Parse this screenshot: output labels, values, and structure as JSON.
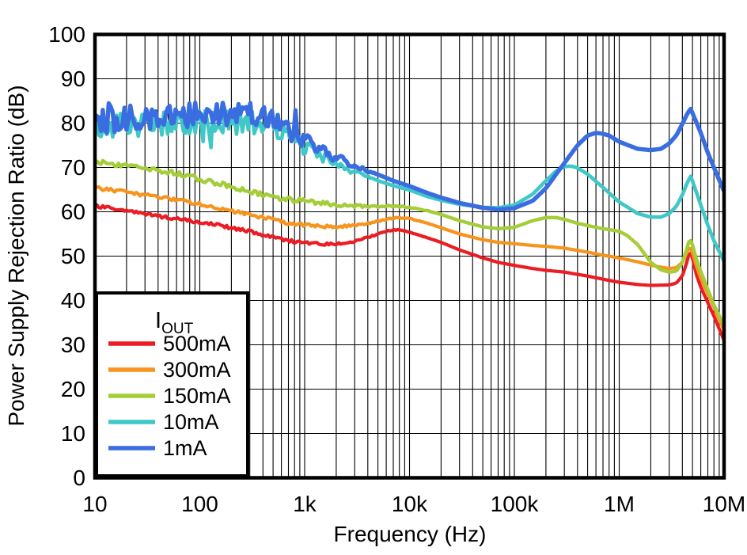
{
  "chart_data": {
    "type": "line",
    "title": "",
    "xlabel": "Frequency (Hz)",
    "ylabel": "Power Supply Rejection Ratio (dB)",
    "x_scale": "log",
    "xlim": [
      10,
      10000000
    ],
    "ylim": [
      0,
      100
    ],
    "grid": "log minor vertical grid + major horizontal grid, black on white",
    "x_ticks": [
      {
        "value": 10,
        "label": "10"
      },
      {
        "value": 100,
        "label": "100"
      },
      {
        "value": 1000,
        "label": "1k"
      },
      {
        "value": 10000,
        "label": "10k"
      },
      {
        "value": 100000,
        "label": "100k"
      },
      {
        "value": 1000000,
        "label": "1M"
      },
      {
        "value": 10000000,
        "label": "10M"
      }
    ],
    "y_ticks": [
      {
        "value": 0,
        "label": "0"
      },
      {
        "value": 10,
        "label": "10"
      },
      {
        "value": 20,
        "label": "20"
      },
      {
        "value": 30,
        "label": "30"
      },
      {
        "value": 40,
        "label": "40"
      },
      {
        "value": 50,
        "label": "50"
      },
      {
        "value": 60,
        "label": "60"
      },
      {
        "value": 70,
        "label": "70"
      },
      {
        "value": 80,
        "label": "80"
      },
      {
        "value": 90,
        "label": "90"
      },
      {
        "value": 100,
        "label": "100"
      }
    ],
    "legend": {
      "title_main": "I",
      "title_sub": "OUT",
      "position": "bottom-left"
    },
    "series": [
      {
        "name": "500mA",
        "color": "#ec1c24",
        "width": 4.2,
        "noise": {
          "amp": 0.35,
          "f0": 1000,
          "f1": 20000
        },
        "points": [
          [
            10,
            61.3
          ],
          [
            20,
            60.2
          ],
          [
            30,
            59.5
          ],
          [
            50,
            58.7
          ],
          [
            70,
            58.2
          ],
          [
            100,
            57.7
          ],
          [
            150,
            57.0
          ],
          [
            200,
            56.4
          ],
          [
            300,
            55.5
          ],
          [
            500,
            54.3
          ],
          [
            700,
            53.5
          ],
          [
            1000,
            53.0
          ],
          [
            1500,
            52.7
          ],
          [
            2000,
            52.7
          ],
          [
            3000,
            53.3
          ],
          [
            4000,
            54.2
          ],
          [
            5000,
            55.0
          ],
          [
            6000,
            55.6
          ],
          [
            7000,
            55.9
          ],
          [
            8000,
            55.9
          ],
          [
            10000,
            55.4
          ],
          [
            15000,
            54.1
          ],
          [
            20000,
            53.1
          ],
          [
            30000,
            51.4
          ],
          [
            50000,
            49.6
          ],
          [
            70000,
            48.6
          ],
          [
            100000,
            47.9
          ],
          [
            150000,
            47.2
          ],
          [
            200000,
            46.8
          ],
          [
            300000,
            46.4
          ],
          [
            500000,
            45.5
          ],
          [
            700000,
            44.8
          ],
          [
            1000000,
            44.1
          ],
          [
            1500000,
            43.6
          ],
          [
            2000000,
            43.4
          ],
          [
            3000000,
            43.5
          ],
          [
            3500000,
            43.9
          ],
          [
            4000000,
            45.5
          ],
          [
            4400000,
            48.5
          ],
          [
            4700000,
            51.2
          ],
          [
            5000000,
            49.5
          ],
          [
            5500000,
            45.5
          ],
          [
            6000000,
            43.0
          ],
          [
            7000000,
            39.5
          ],
          [
            8000000,
            36.5
          ],
          [
            10000000,
            31.0
          ]
        ]
      },
      {
        "name": "300mA",
        "color": "#f7941d",
        "width": 4.2,
        "noise": {
          "amp": 0.4,
          "f0": 1000,
          "f1": 20000
        },
        "points": [
          [
            10,
            65.4
          ],
          [
            20,
            64.4
          ],
          [
            30,
            63.8
          ],
          [
            50,
            63.0
          ],
          [
            70,
            62.4
          ],
          [
            100,
            61.7
          ],
          [
            150,
            60.9
          ],
          [
            200,
            60.2
          ],
          [
            300,
            59.3
          ],
          [
            500,
            58.2
          ],
          [
            700,
            57.5
          ],
          [
            1000,
            57.0
          ],
          [
            1500,
            56.7
          ],
          [
            2000,
            56.6
          ],
          [
            3000,
            56.9
          ],
          [
            4000,
            57.4
          ],
          [
            5000,
            57.9
          ],
          [
            7000,
            58.6
          ],
          [
            8000,
            58.7
          ],
          [
            10000,
            58.5
          ],
          [
            15000,
            57.4
          ],
          [
            20000,
            56.4
          ],
          [
            30000,
            55.0
          ],
          [
            50000,
            53.7
          ],
          [
            70000,
            53.1
          ],
          [
            100000,
            52.8
          ],
          [
            150000,
            52.4
          ],
          [
            200000,
            52.2
          ],
          [
            300000,
            51.8
          ],
          [
            500000,
            50.9
          ],
          [
            700000,
            50.2
          ],
          [
            1000000,
            49.6
          ],
          [
            1500000,
            48.7
          ],
          [
            2000000,
            48.0
          ],
          [
            2500000,
            47.5
          ],
          [
            3000000,
            47.2
          ],
          [
            3500000,
            47.4
          ],
          [
            4000000,
            48.6
          ],
          [
            4400000,
            50.7
          ],
          [
            4700000,
            52.2
          ],
          [
            5000000,
            50.8
          ],
          [
            5500000,
            47.5
          ],
          [
            6000000,
            45.0
          ],
          [
            7000000,
            41.5
          ],
          [
            8000000,
            38.5
          ],
          [
            10000000,
            33.2
          ]
        ]
      },
      {
        "name": "150mA",
        "color": "#a5cd39",
        "width": 4.4,
        "noise": {
          "amp": 0.55,
          "f0": 1000,
          "f1": 20000
        },
        "points": [
          [
            10,
            71.2
          ],
          [
            20,
            70.5
          ],
          [
            30,
            70.0
          ],
          [
            50,
            69.0
          ],
          [
            70,
            68.3
          ],
          [
            100,
            67.4
          ],
          [
            150,
            66.4
          ],
          [
            200,
            65.7
          ],
          [
            300,
            64.7
          ],
          [
            500,
            63.4
          ],
          [
            700,
            62.8
          ],
          [
            1000,
            62.4
          ],
          [
            1500,
            61.9
          ],
          [
            2000,
            61.6
          ],
          [
            3000,
            61.3
          ],
          [
            5000,
            61.2
          ],
          [
            7000,
            61.3
          ],
          [
            10000,
            61.0
          ],
          [
            15000,
            60.2
          ],
          [
            20000,
            59.4
          ],
          [
            30000,
            58.0
          ],
          [
            50000,
            56.6
          ],
          [
            70000,
            56.2
          ],
          [
            100000,
            56.5
          ],
          [
            150000,
            58.0
          ],
          [
            200000,
            58.7
          ],
          [
            250000,
            58.7
          ],
          [
            300000,
            58.3
          ],
          [
            400000,
            57.4
          ],
          [
            500000,
            56.9
          ],
          [
            700000,
            56.2
          ],
          [
            1000000,
            55.6
          ],
          [
            1200000,
            54.6
          ],
          [
            1500000,
            52.6
          ],
          [
            2000000,
            48.6
          ],
          [
            2500000,
            46.9
          ],
          [
            3000000,
            46.4
          ],
          [
            3500000,
            46.6
          ],
          [
            4000000,
            48.5
          ],
          [
            4400000,
            51.5
          ],
          [
            4700000,
            54.0
          ],
          [
            5000000,
            52.5
          ],
          [
            5500000,
            49.0
          ],
          [
            6000000,
            46.5
          ],
          [
            7000000,
            42.5
          ],
          [
            8000000,
            39.0
          ],
          [
            10000000,
            34.3
          ]
        ]
      },
      {
        "name": "10mA",
        "color": "#40c7c7",
        "width": 4.6,
        "noise": {
          "amp": 2.8,
          "f0": 400,
          "f1": 5000,
          "spike_prob": 0.07,
          "spike_amp": -4.0
        },
        "points": [
          [
            10,
            79.5
          ],
          [
            20,
            79.8
          ],
          [
            50,
            79.8
          ],
          [
            100,
            80.0
          ],
          [
            200,
            80.3
          ],
          [
            300,
            80.3
          ],
          [
            400,
            79.8
          ],
          [
            500,
            79.0
          ],
          [
            700,
            77.0
          ],
          [
            1000,
            74.5
          ],
          [
            1500,
            72.3
          ],
          [
            2000,
            70.8
          ],
          [
            3000,
            69.0
          ],
          [
            4000,
            67.9
          ],
          [
            5000,
            67.0
          ],
          [
            7000,
            65.9
          ],
          [
            10000,
            64.9
          ],
          [
            15000,
            63.4
          ],
          [
            20000,
            62.6
          ],
          [
            30000,
            61.7
          ],
          [
            50000,
            61.0
          ],
          [
            70000,
            60.9
          ],
          [
            100000,
            61.5
          ],
          [
            150000,
            64.0
          ],
          [
            200000,
            67.0
          ],
          [
            250000,
            69.2
          ],
          [
            300000,
            70.2
          ],
          [
            350000,
            70.3
          ],
          [
            400000,
            69.9
          ],
          [
            500000,
            68.5
          ],
          [
            700000,
            65.5
          ],
          [
            1000000,
            62.2
          ],
          [
            1500000,
            59.6
          ],
          [
            2000000,
            58.8
          ],
          [
            2500000,
            58.8
          ],
          [
            3000000,
            59.6
          ],
          [
            3500000,
            61.2
          ],
          [
            4000000,
            63.8
          ],
          [
            4500000,
            66.8
          ],
          [
            4800000,
            68.0
          ],
          [
            5200000,
            65.8
          ],
          [
            6000000,
            61.5
          ],
          [
            7000000,
            57.0
          ],
          [
            8000000,
            53.5
          ],
          [
            10000000,
            48.8
          ]
        ]
      },
      {
        "name": "1mA",
        "color": "#3a6de0",
        "width": 5.4,
        "noise": {
          "amp": 3.0,
          "f0": 400,
          "f1": 5000,
          "spike_prob": 0.08,
          "spike_amp": 5.0
        },
        "points": [
          [
            10,
            80.5
          ],
          [
            15,
            80.8
          ],
          [
            20,
            81.0
          ],
          [
            30,
            81.3
          ],
          [
            50,
            81.3
          ],
          [
            70,
            81.4
          ],
          [
            100,
            81.5
          ],
          [
            150,
            81.8
          ],
          [
            200,
            82.0
          ],
          [
            300,
            82.0
          ],
          [
            400,
            81.5
          ],
          [
            500,
            80.5
          ],
          [
            700,
            78.5
          ],
          [
            1000,
            76.0
          ],
          [
            1500,
            73.8
          ],
          [
            2000,
            72.2
          ],
          [
            3000,
            70.3
          ],
          [
            4000,
            69.2
          ],
          [
            5000,
            68.4
          ],
          [
            7000,
            67.0
          ],
          [
            10000,
            65.8
          ],
          [
            15000,
            64.2
          ],
          [
            20000,
            63.2
          ],
          [
            30000,
            62.0
          ],
          [
            50000,
            60.9
          ],
          [
            70000,
            60.5
          ],
          [
            100000,
            60.8
          ],
          [
            150000,
            62.5
          ],
          [
            200000,
            65.3
          ],
          [
            300000,
            71.0
          ],
          [
            400000,
            75.0
          ],
          [
            500000,
            77.2
          ],
          [
            600000,
            77.8
          ],
          [
            700000,
            77.6
          ],
          [
            800000,
            77.2
          ],
          [
            1000000,
            75.8
          ],
          [
            1500000,
            74.2
          ],
          [
            2000000,
            73.9
          ],
          [
            2500000,
            74.2
          ],
          [
            3000000,
            75.4
          ],
          [
            3500000,
            77.2
          ],
          [
            4000000,
            79.8
          ],
          [
            4500000,
            82.3
          ],
          [
            4800000,
            83.2
          ],
          [
            5200000,
            81.3
          ],
          [
            6000000,
            77.8
          ],
          [
            7000000,
            73.3
          ],
          [
            8000000,
            70.0
          ],
          [
            10000000,
            64.6
          ]
        ]
      }
    ]
  }
}
